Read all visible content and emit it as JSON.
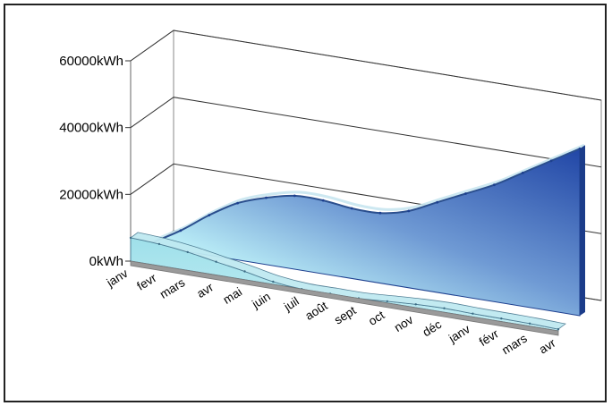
{
  "chart_data": {
    "type": "area",
    "title": "",
    "xlabel": "",
    "ylabel": "",
    "ylim": [
      0,
      60000
    ],
    "grid": true,
    "y_ticks": [
      "0kWh",
      "20000kWh",
      "40000kWh",
      "60000kWh"
    ],
    "y_tick_values": [
      0,
      20000,
      40000,
      60000
    ],
    "categories": [
      "janv",
      "fevr",
      "mars",
      "avr",
      "mai",
      "juin",
      "juil",
      "août",
      "sept",
      "oct",
      "nov",
      "déc",
      "janv",
      "févr",
      "mars",
      "avr"
    ],
    "series": [
      {
        "values": [
          7000,
          6500,
          5500,
          4000,
          2500,
          800,
          0,
          0,
          0,
          500,
          1000,
          1200,
          1000,
          900,
          800,
          500
        ],
        "color": "#7fd6e3"
      },
      {
        "values": [
          1000,
          6000,
          12000,
          17000,
          20000,
          22000,
          22000,
          21000,
          21000,
          23000,
          27000,
          31000,
          35000,
          40000,
          45000,
          50000
        ],
        "color": "#2a55b0"
      }
    ]
  }
}
